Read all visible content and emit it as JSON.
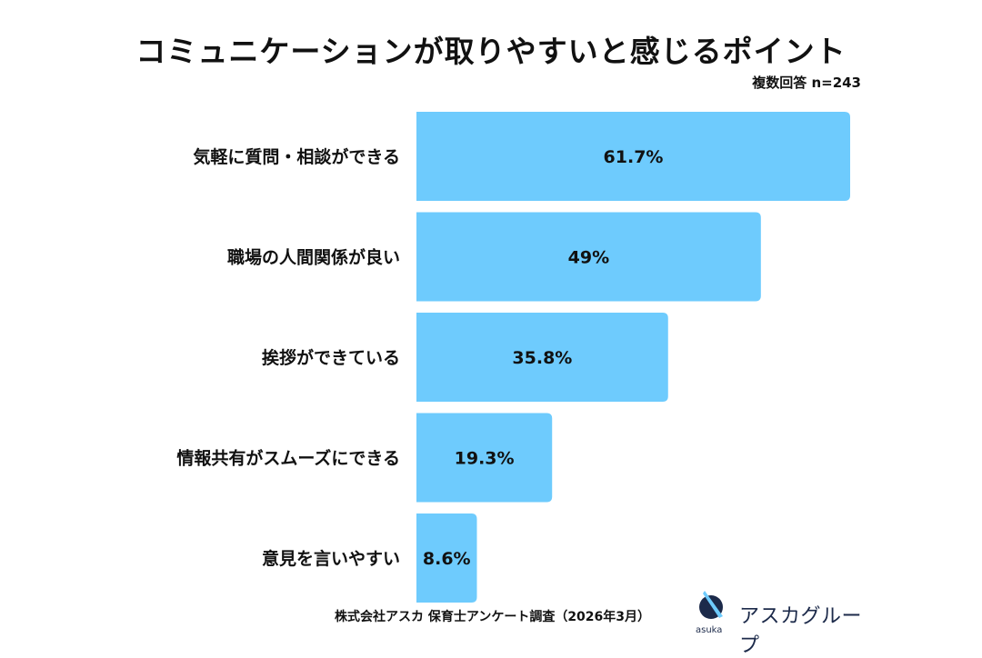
{
  "chart_data": {
    "type": "bar",
    "orientation": "horizontal",
    "title": "コミュニケーションが取りやすいと感じるポイント",
    "subtitle": "複数回答 n=243",
    "categories": [
      "気軽に質問・相談ができる",
      "職場の人間関係が良い",
      "挨拶ができている",
      "情報共有がスムーズにできる",
      "意見を言いやすい"
    ],
    "values": [
      61.7,
      49,
      35.8,
      19.3,
      8.6
    ],
    "value_labels": [
      "61.7%",
      "49%",
      "35.8%",
      "19.3%",
      "8.6%"
    ],
    "xlim": [
      0,
      61.7
    ],
    "grid": false,
    "bar_color": "#6ecbfd",
    "source": "株式会社アスカ 保育士アンケート調査（2026年3月）"
  },
  "brand": {
    "name": "アスカグループ",
    "logo_text": "asuka",
    "color": "#1c2a4a"
  }
}
